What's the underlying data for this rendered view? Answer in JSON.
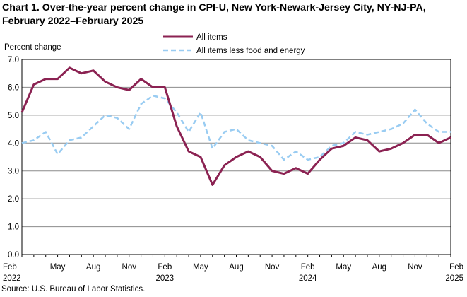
{
  "title_line1": "Chart 1. Over-the-year percent change in CPI-U, New York-Newark-Jersey City, NY-NJ-PA,",
  "title_line2": "February 2022–February 2025",
  "source": "Source: U.S. Bureau of Labor Statistics.",
  "chart_data": {
    "type": "line",
    "title": "Chart 1. Over-the-year percent change in CPI-U, New York-Newark-Jersey City, NY-NJ-PA, February 2022–February 2025",
    "xlabel": "",
    "ylabel": "Percent change",
    "ylim": [
      0,
      7
    ],
    "yticks": [
      "0.0",
      "1.0",
      "2.0",
      "3.0",
      "4.0",
      "5.0",
      "6.0",
      "7.0"
    ],
    "grid": true,
    "legend_position": "top-center",
    "x": [
      "Feb 2022",
      "Mar 2022",
      "Apr 2022",
      "May 2022",
      "Jun 2022",
      "Jul 2022",
      "Aug 2022",
      "Sep 2022",
      "Oct 2022",
      "Nov 2022",
      "Dec 2022",
      "Jan 2023",
      "Feb 2023",
      "Mar 2023",
      "Apr 2023",
      "May 2023",
      "Jun 2023",
      "Jul 2023",
      "Aug 2023",
      "Sep 2023",
      "Oct 2023",
      "Nov 2023",
      "Dec 2023",
      "Jan 2024",
      "Feb 2024",
      "Mar 2024",
      "Apr 2024",
      "May 2024",
      "Jun 2024",
      "Jul 2024",
      "Aug 2024",
      "Sep 2024",
      "Oct 2024",
      "Nov 2024",
      "Dec 2024",
      "Jan 2025",
      "Feb 2025"
    ],
    "x_tick_labels": [
      {
        "index": 0,
        "label": "Feb",
        "sub": "2022"
      },
      {
        "index": 3,
        "label": "May",
        "sub": ""
      },
      {
        "index": 6,
        "label": "Aug",
        "sub": ""
      },
      {
        "index": 9,
        "label": "Nov",
        "sub": ""
      },
      {
        "index": 12,
        "label": "Feb",
        "sub": "2023"
      },
      {
        "index": 15,
        "label": "May",
        "sub": ""
      },
      {
        "index": 18,
        "label": "Aug",
        "sub": ""
      },
      {
        "index": 21,
        "label": "Nov",
        "sub": ""
      },
      {
        "index": 24,
        "label": "Feb",
        "sub": "2024"
      },
      {
        "index": 27,
        "label": "May",
        "sub": ""
      },
      {
        "index": 30,
        "label": "Aug",
        "sub": ""
      },
      {
        "index": 33,
        "label": "Nov",
        "sub": ""
      },
      {
        "index": 36,
        "label": "Feb",
        "sub": "2025"
      }
    ],
    "series": [
      {
        "name": "All items",
        "color": "#8b2252",
        "style": "solid",
        "values": [
          5.1,
          6.1,
          6.3,
          6.3,
          6.7,
          6.5,
          6.6,
          6.2,
          6.0,
          5.9,
          6.3,
          6.0,
          6.0,
          4.6,
          3.7,
          3.5,
          2.5,
          3.2,
          3.5,
          3.7,
          3.5,
          3.0,
          2.9,
          3.1,
          2.9,
          3.4,
          3.8,
          3.9,
          4.2,
          4.1,
          3.7,
          3.8,
          4.0,
          4.3,
          4.3,
          4.0,
          4.2
        ]
      },
      {
        "name": "All items less food and energy",
        "color": "#99ccf2",
        "style": "dashed",
        "values": [
          4.0,
          4.1,
          4.4,
          3.6,
          4.1,
          4.2,
          4.6,
          5.0,
          4.9,
          4.5,
          5.4,
          5.7,
          5.6,
          5.1,
          4.4,
          5.1,
          3.8,
          4.4,
          4.5,
          4.1,
          4.0,
          3.9,
          3.4,
          3.7,
          3.4,
          3.5,
          3.9,
          4.0,
          4.4,
          4.3,
          4.4,
          4.5,
          4.7,
          5.2,
          4.7,
          4.4,
          4.4
        ]
      }
    ]
  }
}
